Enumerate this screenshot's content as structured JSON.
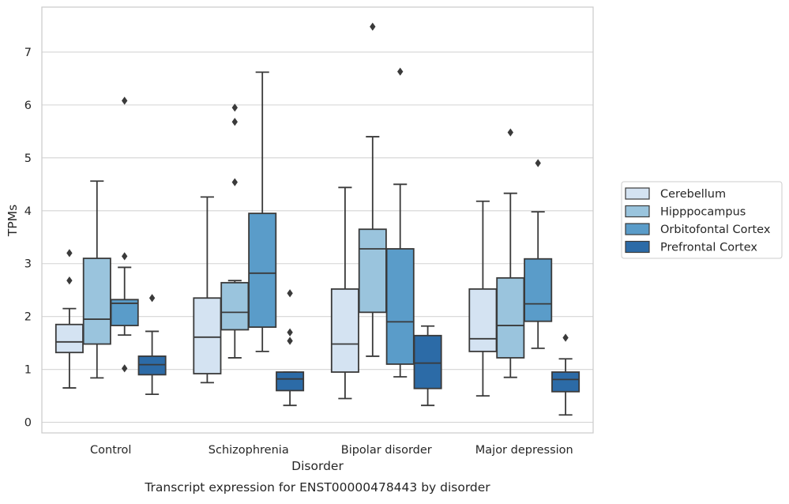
{
  "chart_data": {
    "type": "boxplot",
    "title": "",
    "caption": "Transcript expression for ENST00000478443 by disorder",
    "xlabel": "Disorder",
    "ylabel": "TPMs",
    "ylim": [
      -0.2,
      7.85
    ],
    "yticks": [
      0,
      1,
      2,
      3,
      4,
      5,
      6,
      7
    ],
    "grid": "horizontal",
    "legend_position": "right",
    "categories": [
      "Control",
      "Schizophrenia",
      "Bipolar disorder",
      "Major depression"
    ],
    "series": [
      {
        "name": "Cerebellum",
        "color": "#d4e3f2",
        "boxes": [
          {
            "whislo": 0.65,
            "q1": 1.32,
            "med": 1.52,
            "q3": 1.85,
            "whishi": 2.15,
            "fliers": [
              2.68,
              3.2
            ]
          },
          {
            "whislo": 0.75,
            "q1": 0.92,
            "med": 1.61,
            "q3": 2.35,
            "whishi": 4.26,
            "fliers": []
          },
          {
            "whislo": 0.45,
            "q1": 0.95,
            "med": 1.48,
            "q3": 2.52,
            "whishi": 4.44,
            "fliers": []
          },
          {
            "whislo": 0.5,
            "q1": 1.34,
            "med": 1.58,
            "q3": 2.52,
            "whishi": 4.18,
            "fliers": []
          }
        ]
      },
      {
        "name": "Hipppocampus",
        "color": "#9ac4dd",
        "boxes": [
          {
            "whislo": 0.84,
            "q1": 1.48,
            "med": 1.95,
            "q3": 3.1,
            "whishi": 4.56,
            "fliers": []
          },
          {
            "whislo": 1.22,
            "q1": 1.75,
            "med": 2.08,
            "q3": 2.64,
            "whishi": 2.68,
            "fliers": [
              4.54,
              5.68,
              5.95
            ]
          },
          {
            "whislo": 1.25,
            "q1": 2.08,
            "med": 3.28,
            "q3": 3.65,
            "whishi": 5.4,
            "fliers": [
              7.48
            ]
          },
          {
            "whislo": 0.85,
            "q1": 1.22,
            "med": 1.83,
            "q3": 2.73,
            "whishi": 4.33,
            "fliers": [
              5.48
            ]
          }
        ]
      },
      {
        "name": "Orbitofontal Cortex",
        "color": "#5a9cc9",
        "boxes": [
          {
            "whislo": 1.65,
            "q1": 1.83,
            "med": 2.25,
            "q3": 2.32,
            "whishi": 2.93,
            "fliers": [
              1.02,
              3.14,
              6.08
            ]
          },
          {
            "whislo": 1.34,
            "q1": 1.8,
            "med": 2.82,
            "q3": 3.95,
            "whishi": 6.62,
            "fliers": []
          },
          {
            "whislo": 0.86,
            "q1": 1.1,
            "med": 1.9,
            "q3": 3.28,
            "whishi": 4.5,
            "fliers": [
              6.63
            ]
          },
          {
            "whislo": 1.4,
            "q1": 1.91,
            "med": 2.24,
            "q3": 3.09,
            "whishi": 3.98,
            "fliers": [
              4.9
            ]
          }
        ]
      },
      {
        "name": "Prefrontal Cortex",
        "color": "#2c6ba7",
        "boxes": [
          {
            "whislo": 0.53,
            "q1": 0.9,
            "med": 1.09,
            "q3": 1.25,
            "whishi": 1.72,
            "fliers": [
              2.35
            ]
          },
          {
            "whislo": 0.32,
            "q1": 0.6,
            "med": 0.82,
            "q3": 0.95,
            "whishi": 0.95,
            "fliers": [
              1.54,
              1.7,
              2.44
            ]
          },
          {
            "whislo": 0.32,
            "q1": 0.64,
            "med": 1.12,
            "q3": 1.64,
            "whishi": 1.82,
            "fliers": []
          },
          {
            "whislo": 0.14,
            "q1": 0.58,
            "med": 0.81,
            "q3": 0.95,
            "whishi": 1.2,
            "fliers": [
              1.6
            ]
          }
        ]
      }
    ]
  }
}
